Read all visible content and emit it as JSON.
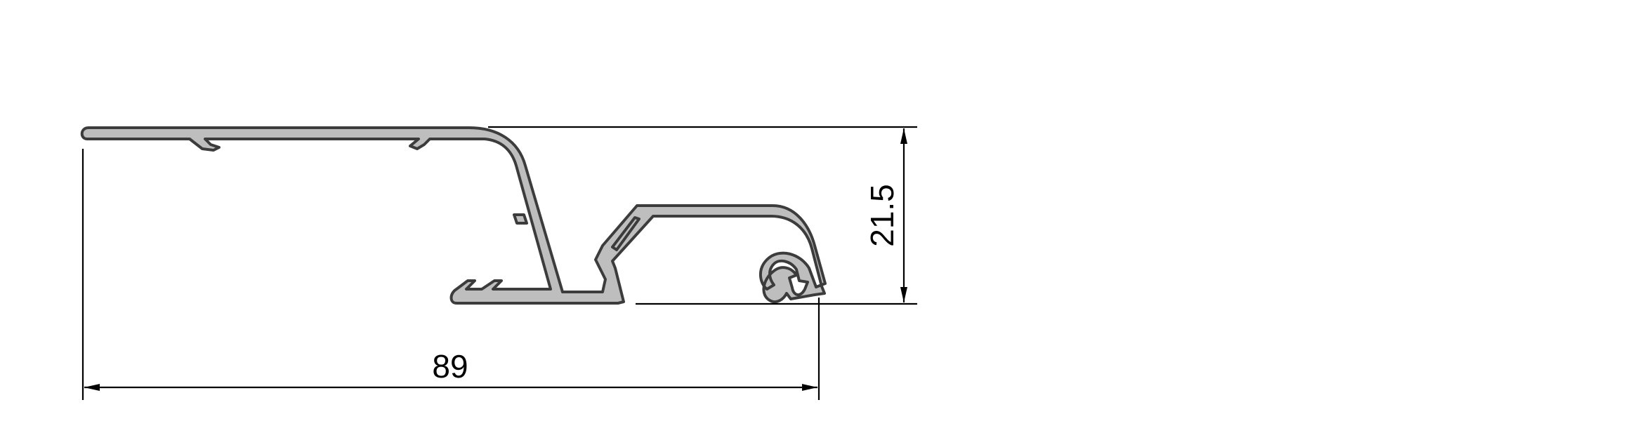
{
  "drawing": {
    "dimensions": {
      "width": {
        "value": "89"
      },
      "height": {
        "value": "21.5"
      }
    },
    "colors": {
      "profile_fill": "#bebebe",
      "profile_stroke": "#3c3c3c",
      "dimension_lines": "#000000",
      "background": "#ffffff"
    }
  }
}
